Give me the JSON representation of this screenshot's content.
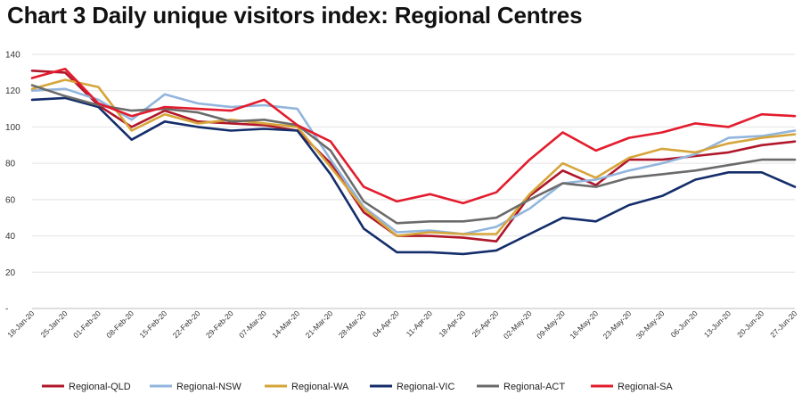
{
  "chart_data": {
    "type": "line",
    "title": "Chart 3 Daily unique visitors index: Regional Centres",
    "xlabel": "",
    "ylabel": "",
    "ylim": [
      0,
      140
    ],
    "yticks": [
      "-",
      "20",
      "40",
      "60",
      "80",
      "100",
      "120",
      "140"
    ],
    "grid": true,
    "legend_position": "bottom",
    "categories": [
      "18-Jan-20",
      "25-Jan-20",
      "01-Feb-20",
      "08-Feb-20",
      "15-Feb-20",
      "22-Feb-20",
      "29-Feb-20",
      "07-Mar-20",
      "14-Mar-20",
      "21-Mar-20",
      "28-Mar-20",
      "04-Apr-20",
      "11-Apr-20",
      "18-Apr-20",
      "25-Apr-20",
      "02-May-20",
      "09-May-20",
      "16-May-20",
      "23-May-20",
      "30-May-20",
      "06-Jun-20",
      "13-Jun-20",
      "20-Jun-20",
      "27-Jun-20"
    ],
    "series": [
      {
        "name": "Regional-QLD",
        "color": "#b0172a",
        "values": [
          131,
          130,
          112,
          100,
          109,
          103,
          102,
          101,
          98,
          80,
          53,
          40,
          40,
          39,
          37,
          62,
          76,
          68,
          82,
          82,
          84,
          86,
          90,
          92
        ]
      },
      {
        "name": "Regional-NSW",
        "color": "#92b5dd",
        "values": [
          120,
          121,
          115,
          104,
          118,
          113,
          111,
          112,
          110,
          82,
          56,
          42,
          43,
          41,
          45,
          55,
          69,
          71,
          76,
          80,
          85,
          94,
          95,
          98
        ]
      },
      {
        "name": "Regional-WA",
        "color": "#d6a53a",
        "values": [
          121,
          126,
          122,
          98,
          107,
          102,
          104,
          102,
          100,
          78,
          55,
          40,
          42,
          41,
          41,
          63,
          80,
          72,
          83,
          88,
          86,
          91,
          94,
          96
        ]
      },
      {
        "name": "Regional-VIC",
        "color": "#142d6b",
        "values": [
          115,
          116,
          111,
          93,
          103,
          100,
          98,
          99,
          98,
          74,
          44,
          31,
          31,
          30,
          32,
          41,
          50,
          48,
          57,
          62,
          71,
          75,
          75,
          67
        ]
      },
      {
        "name": "Regional-ACT",
        "color": "#6b6b6b",
        "values": [
          123,
          117,
          112,
          109,
          110,
          108,
          103,
          104,
          101,
          87,
          59,
          47,
          48,
          48,
          50,
          60,
          69,
          67,
          72,
          74,
          76,
          79,
          82,
          82
        ]
      },
      {
        "name": "Regional-SA",
        "color": "#e31c2d",
        "values": [
          127,
          132,
          113,
          106,
          111,
          110,
          109,
          115,
          101,
          92,
          67,
          59,
          63,
          58,
          64,
          82,
          97,
          87,
          94,
          97,
          102,
          100,
          107,
          106
        ]
      }
    ]
  }
}
